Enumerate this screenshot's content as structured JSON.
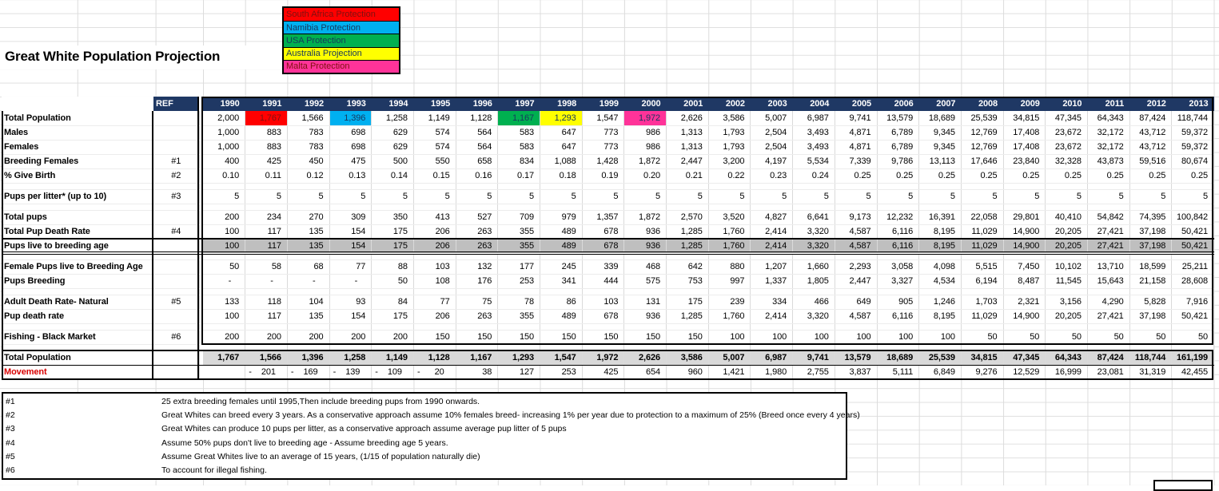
{
  "title": "Great White Population Projection",
  "colors": {
    "header_bg": "#1F3864",
    "header_fg": "#FFFFFF",
    "shade_dark": "#BFBFBF",
    "shade_light": "#D9D9D9",
    "movement_fg": "#D80000",
    "highlight_red": "#FF0000",
    "highlight_blue": "#00B0F0",
    "highlight_green": "#00B050",
    "highlight_yellow": "#FFFF00",
    "highlight_pink": "#FF3399"
  },
  "legend": {
    "items": [
      {
        "label": "South Africa Protection",
        "bg": "#FF0000",
        "fg": "#7F1010"
      },
      {
        "label": "Namibia Protection",
        "bg": "#00B0F0",
        "fg": "#17375E"
      },
      {
        "label": "USA Protection",
        "bg": "#00B050",
        "fg": "#17375E"
      },
      {
        "label": "Australia Projection",
        "bg": "#FFFF00",
        "fg": "#17375E"
      },
      {
        "label": "Malta Protection",
        "bg": "#FF3399",
        "fg": "#7F1010"
      }
    ]
  },
  "table": {
    "ref_header": "REF",
    "years": [
      "1990",
      "1991",
      "1992",
      "1993",
      "1994",
      "1995",
      "1996",
      "1997",
      "1998",
      "1999",
      "2000",
      "2001",
      "2002",
      "2003",
      "2004",
      "2005",
      "2006",
      "2007",
      "2008",
      "2009",
      "2010",
      "2011",
      "2012",
      "2013"
    ],
    "rows": [
      {
        "label": "Total Population",
        "ref": "",
        "values": [
          "2,000",
          "1,767",
          "1,566",
          "1,396",
          "1,258",
          "1,149",
          "1,128",
          "1,167",
          "1,293",
          "1,547",
          "1,972",
          "2,626",
          "3,586",
          "5,007",
          "6,987",
          "9,741",
          "13,579",
          "18,689",
          "25,539",
          "34,815",
          "47,345",
          "64,343",
          "87,424",
          "118,744"
        ],
        "highlights": {
          "1": {
            "bg": "#FF0000",
            "fg": "#7F1010"
          },
          "3": {
            "bg": "#00B0F0",
            "fg": "#17375E"
          },
          "7": {
            "bg": "#00B050",
            "fg": "#17375E"
          },
          "8": {
            "bg": "#FFFF00",
            "fg": "#17375E"
          },
          "10": {
            "bg": "#FF3399",
            "fg": "#17375E"
          }
        }
      },
      {
        "label": "Males",
        "ref": "",
        "values": [
          "1,000",
          "883",
          "783",
          "698",
          "629",
          "574",
          "564",
          "583",
          "647",
          "773",
          "986",
          "1,313",
          "1,793",
          "2,504",
          "3,493",
          "4,871",
          "6,789",
          "9,345",
          "12,769",
          "17,408",
          "23,672",
          "32,172",
          "43,712",
          "59,372"
        ]
      },
      {
        "label": "Females",
        "ref": "",
        "values": [
          "1,000",
          "883",
          "783",
          "698",
          "629",
          "574",
          "564",
          "583",
          "647",
          "773",
          "986",
          "1,313",
          "1,793",
          "2,504",
          "3,493",
          "4,871",
          "6,789",
          "9,345",
          "12,769",
          "17,408",
          "23,672",
          "32,172",
          "43,712",
          "59,372"
        ]
      },
      {
        "label": "Breeding Females",
        "ref": "#1",
        "values": [
          "400",
          "425",
          "450",
          "475",
          "500",
          "550",
          "658",
          "834",
          "1,088",
          "1,428",
          "1,872",
          "2,447",
          "3,200",
          "4,197",
          "5,534",
          "7,339",
          "9,786",
          "13,113",
          "17,646",
          "23,840",
          "32,328",
          "43,873",
          "59,516",
          "80,674"
        ]
      },
      {
        "label": "% Give Birth",
        "ref": "#2",
        "values": [
          "0.10",
          "0.11",
          "0.12",
          "0.13",
          "0.14",
          "0.15",
          "0.16",
          "0.17",
          "0.18",
          "0.19",
          "0.20",
          "0.21",
          "0.22",
          "0.23",
          "0.24",
          "0.25",
          "0.25",
          "0.25",
          "0.25",
          "0.25",
          "0.25",
          "0.25",
          "0.25",
          "0.25"
        ]
      },
      {
        "blank": true
      },
      {
        "label": "Pups per litter* (up to 10)",
        "ref": "#3",
        "values": [
          "5",
          "5",
          "5",
          "5",
          "5",
          "5",
          "5",
          "5",
          "5",
          "5",
          "5",
          "5",
          "5",
          "5",
          "5",
          "5",
          "5",
          "5",
          "5",
          "5",
          "5",
          "5",
          "5",
          "5"
        ]
      },
      {
        "blank": true
      },
      {
        "label": "Total pups",
        "ref": "",
        "values": [
          "200",
          "234",
          "270",
          "309",
          "350",
          "413",
          "527",
          "709",
          "979",
          "1,357",
          "1,872",
          "2,570",
          "3,520",
          "4,827",
          "6,641",
          "9,173",
          "12,232",
          "16,391",
          "22,058",
          "29,801",
          "40,410",
          "54,842",
          "74,395",
          "100,842"
        ]
      },
      {
        "label": "Total Pup Death Rate",
        "ref": "#4",
        "values": [
          "100",
          "117",
          "135",
          "154",
          "175",
          "206",
          "263",
          "355",
          "489",
          "678",
          "936",
          "1,285",
          "1,760",
          "2,414",
          "3,320",
          "4,587",
          "6,116",
          "8,195",
          "11,029",
          "14,900",
          "20,205",
          "27,421",
          "37,198",
          "50,421"
        ]
      },
      {
        "label": "Pups live to breeding age",
        "ref": "",
        "style": "shaded-double",
        "values": [
          "100",
          "117",
          "135",
          "154",
          "175",
          "206",
          "263",
          "355",
          "489",
          "678",
          "936",
          "1,285",
          "1,760",
          "2,414",
          "3,320",
          "4,587",
          "6,116",
          "8,195",
          "11,029",
          "14,900",
          "20,205",
          "27,421",
          "37,198",
          "50,421"
        ]
      },
      {
        "blank": true
      },
      {
        "label": "Female Pups live to Breeding Age",
        "ref": "",
        "values": [
          "50",
          "58",
          "68",
          "77",
          "88",
          "103",
          "132",
          "177",
          "245",
          "339",
          "468",
          "642",
          "880",
          "1,207",
          "1,660",
          "2,293",
          "3,058",
          "4,098",
          "5,515",
          "7,450",
          "10,102",
          "13,710",
          "18,599",
          "25,211"
        ]
      },
      {
        "label": "Pups Breeding",
        "ref": "",
        "values": [
          "-",
          "-",
          "-",
          "-",
          "50",
          "108",
          "176",
          "253",
          "341",
          "444",
          "575",
          "753",
          "997",
          "1,337",
          "1,805",
          "2,447",
          "3,327",
          "4,534",
          "6,194",
          "8,487",
          "11,545",
          "15,643",
          "21,158",
          "28,608"
        ]
      },
      {
        "blank": true
      },
      {
        "label": "Adult Death Rate- Natural",
        "ref": "#5",
        "values": [
          "133",
          "118",
          "104",
          "93",
          "84",
          "77",
          "75",
          "78",
          "86",
          "103",
          "131",
          "175",
          "239",
          "334",
          "466",
          "649",
          "905",
          "1,246",
          "1,703",
          "2,321",
          "3,156",
          "4,290",
          "5,828",
          "7,916"
        ]
      },
      {
        "label": "Pup death rate",
        "ref": "",
        "values": [
          "100",
          "117",
          "135",
          "154",
          "175",
          "206",
          "263",
          "355",
          "489",
          "678",
          "936",
          "1,285",
          "1,760",
          "2,414",
          "3,320",
          "4,587",
          "6,116",
          "8,195",
          "11,029",
          "14,900",
          "20,205",
          "27,421",
          "37,198",
          "50,421"
        ]
      },
      {
        "blank": true
      },
      {
        "label": "Fishing - Black Market",
        "ref": "#6",
        "values": [
          "200",
          "200",
          "200",
          "200",
          "200",
          "150",
          "150",
          "150",
          "150",
          "150",
          "150",
          "150",
          "100",
          "100",
          "100",
          "100",
          "100",
          "100",
          "50",
          "50",
          "50",
          "50",
          "50",
          "50"
        ]
      },
      {
        "blank": true
      },
      {
        "label": "Total Population",
        "ref": "",
        "style": "total",
        "values": [
          "1,767",
          "1,566",
          "1,396",
          "1,258",
          "1,149",
          "1,128",
          "1,167",
          "1,293",
          "1,547",
          "1,972",
          "2,626",
          "3,586",
          "5,007",
          "6,987",
          "9,741",
          "13,579",
          "18,689",
          "25,539",
          "34,815",
          "47,345",
          "64,343",
          "87,424",
          "118,744",
          "161,199"
        ]
      },
      {
        "label": "Movement",
        "ref": "",
        "style": "movement",
        "values": [
          "",
          "-201",
          "-169",
          "-139",
          "-109",
          "-20",
          "38",
          "127",
          "253",
          "425",
          "654",
          "960",
          "1,421",
          "1,980",
          "2,755",
          "3,837",
          "5,111",
          "6,849",
          "9,276",
          "12,529",
          "16,999",
          "23,081",
          "31,319",
          "42,455"
        ]
      }
    ]
  },
  "footnotes": [
    {
      "ref": "#1",
      "text": "25 extra breeding females until 1995,Then include breeding pups from 1990 onwards."
    },
    {
      "ref": "#2",
      "text": "Great Whites can breed every 3 years. As a conservative approach assume 10% females breed- increasing 1% per year due to protection to a maximum of 25% (Breed once every 4 years)"
    },
    {
      "ref": "#3",
      "text": "Great Whites can produce 10 pups per litter, as a conservative approach assume average pup litter of 5 pups"
    },
    {
      "ref": "#4",
      "text": "Assume 50% pups don't live to breeding age - Assume breeding age 5 years."
    },
    {
      "ref": "#5",
      "text": "Assume Great Whites live to an average of 15 years, (1/15 of population naturally die)"
    },
    {
      "ref": "#6",
      "text": "To account for illegal fishing."
    }
  ]
}
